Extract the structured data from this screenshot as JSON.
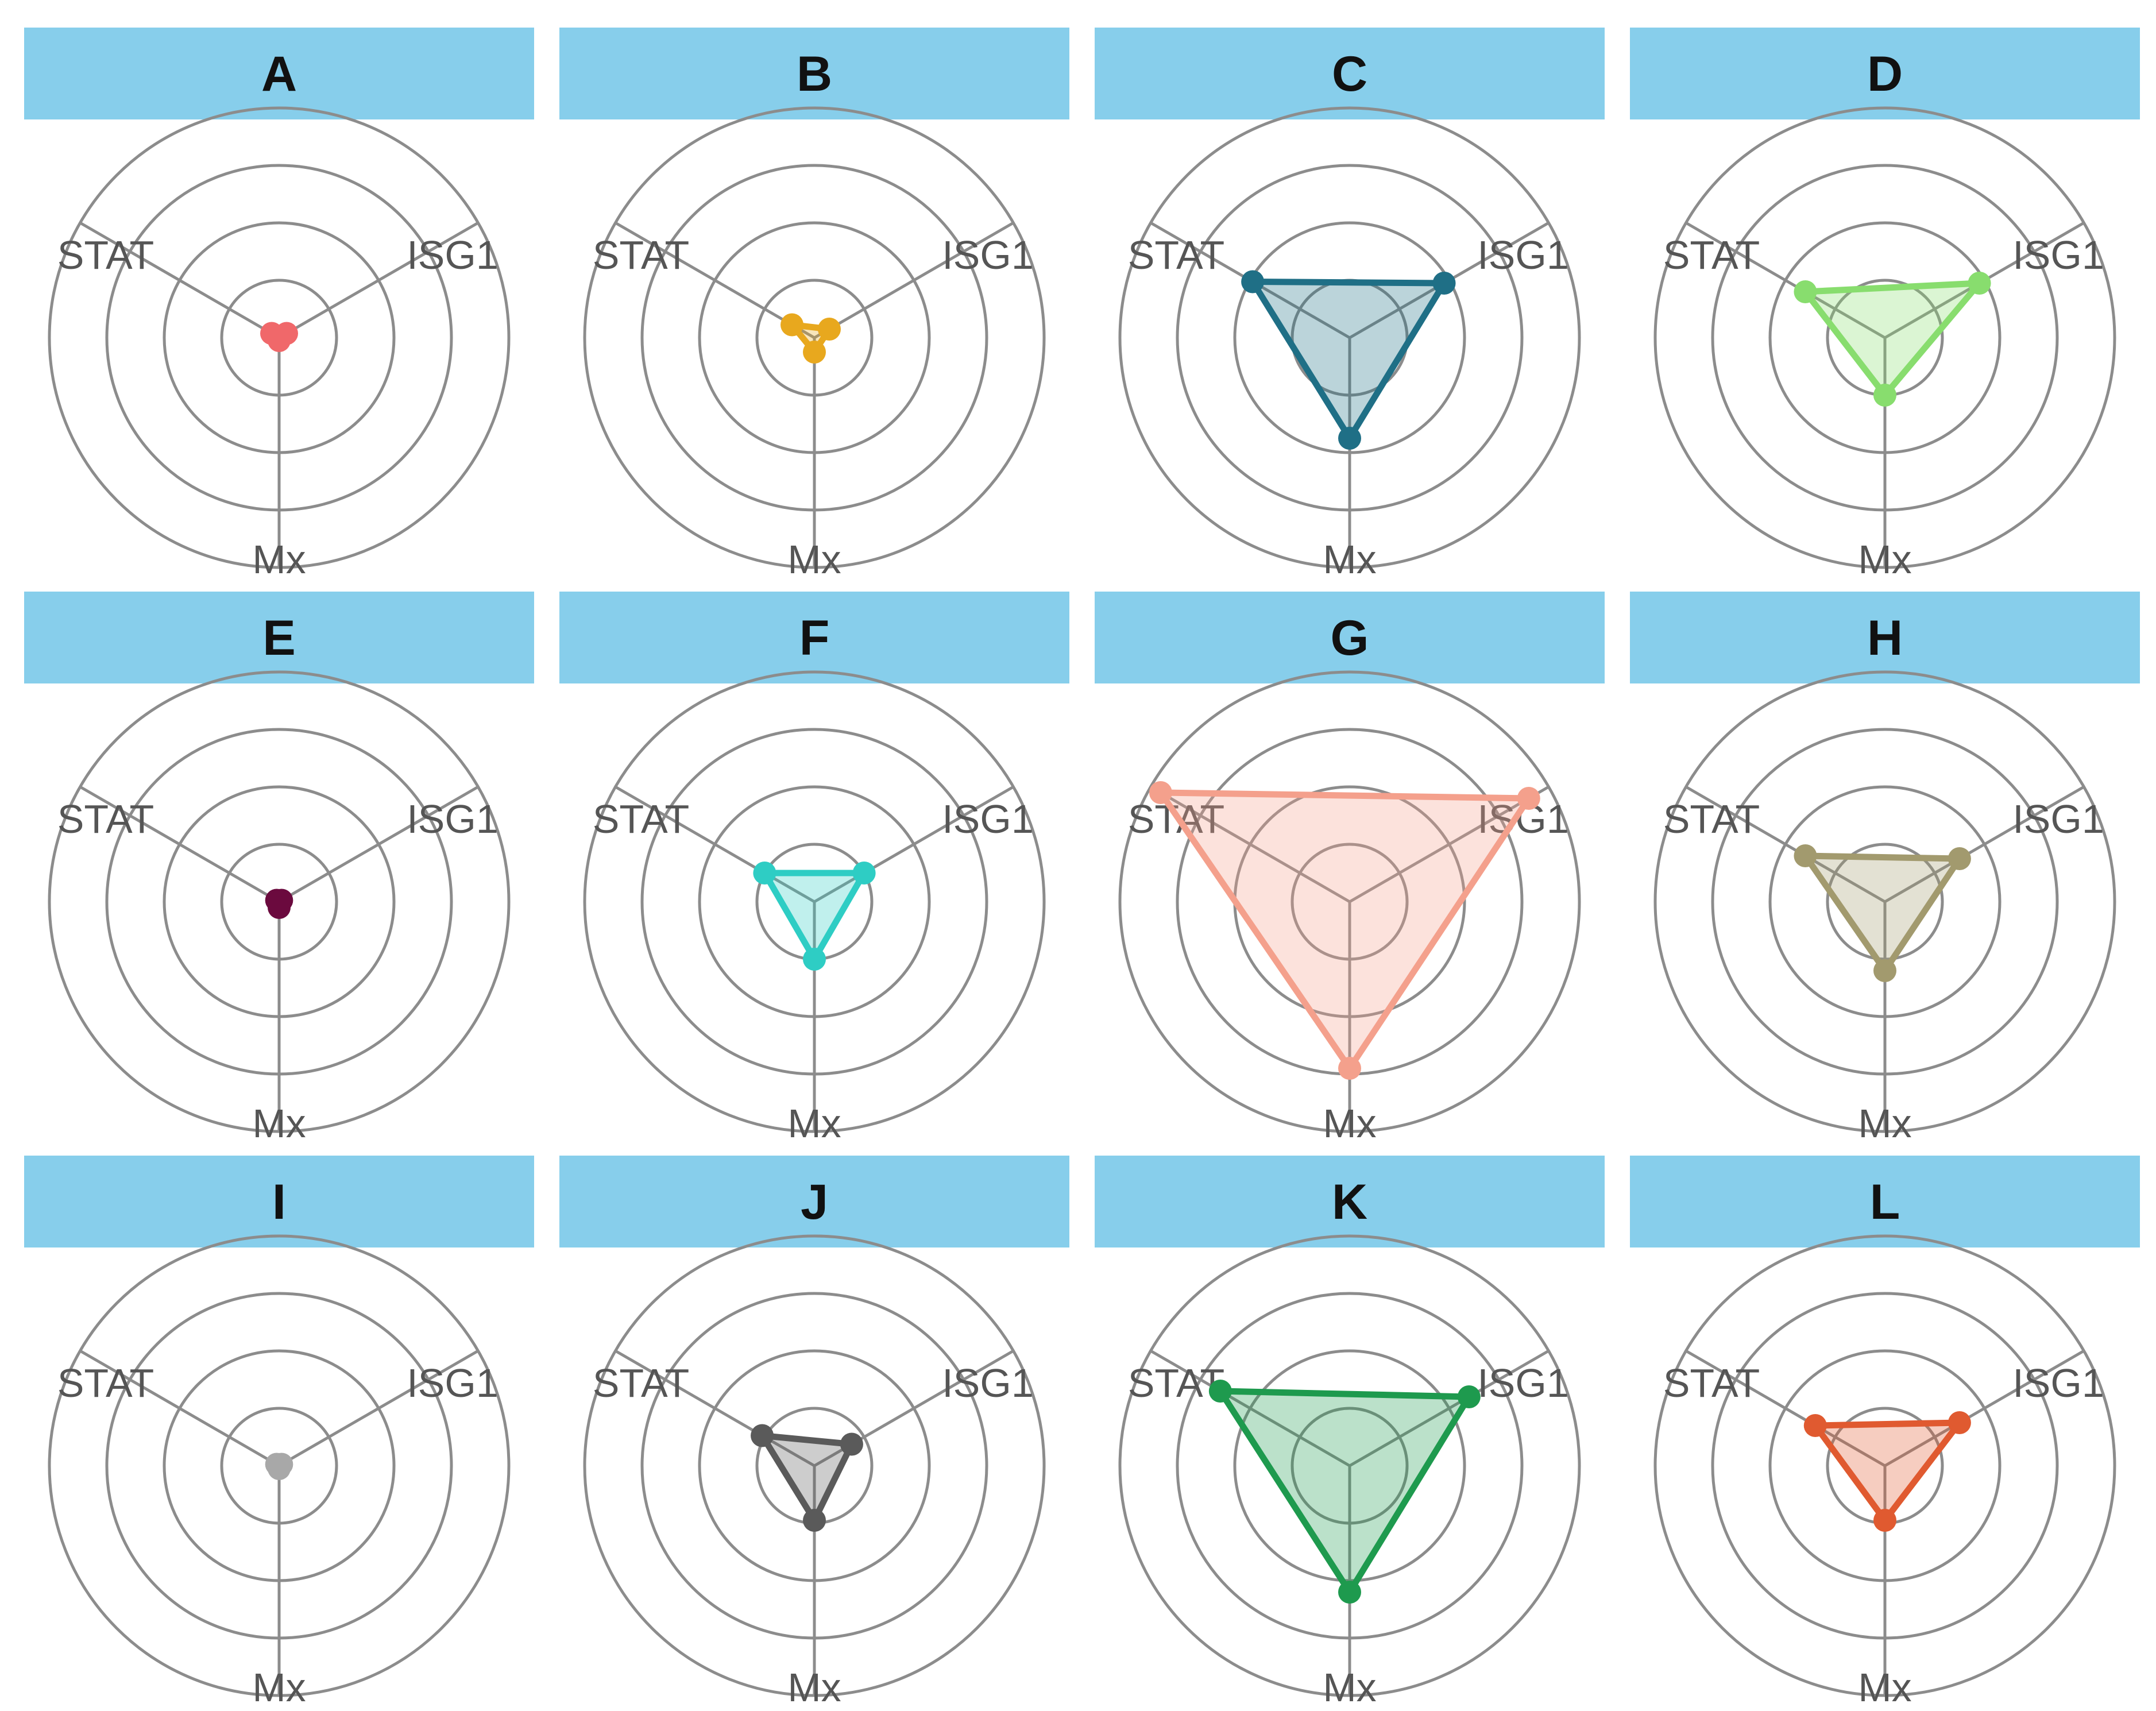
{
  "chart_data": {
    "type": "radar",
    "axes": [
      "STAT",
      "ISG1",
      "Mx"
    ],
    "rings": 4,
    "colors": {
      "header_fill": "#87CEEB",
      "ring_stroke": "#8c8c8c",
      "spoke_stroke": "#8c8c8c"
    },
    "panels": [
      {
        "label": "A",
        "color": "#F0686A",
        "values": {
          "STAT": 0.15,
          "ISG1": 0.15,
          "Mx": 0.05
        }
      },
      {
        "label": "B",
        "color": "#E8A81E",
        "values": {
          "STAT": 0.45,
          "ISG1": 0.3,
          "Mx": 0.25
        }
      },
      {
        "label": "C",
        "color": "#1F6F86",
        "values": {
          "STAT": 1.95,
          "ISG1": 1.9,
          "Mx": 1.75
        }
      },
      {
        "label": "D",
        "color": "#88DD6E",
        "values": {
          "STAT": 1.6,
          "ISG1": 1.9,
          "Mx": 1.0
        }
      },
      {
        "label": "E",
        "color": "#6B0A3E",
        "values": {
          "STAT": 0.05,
          "ISG1": 0.05,
          "Mx": 0.1
        }
      },
      {
        "label": "F",
        "color": "#2ECDC4",
        "values": {
          "STAT": 1.0,
          "ISG1": 1.0,
          "Mx": 1.0
        }
      },
      {
        "label": "G",
        "color": "#F4A08C",
        "values": {
          "STAT": 3.8,
          "ISG1": 3.6,
          "Mx": 2.9
        }
      },
      {
        "label": "H",
        "color": "#A29A6E",
        "values": {
          "STAT": 1.6,
          "ISG1": 1.5,
          "Mx": 1.2
        }
      },
      {
        "label": "I",
        "color": "#A8A8A8",
        "values": {
          "STAT": 0.05,
          "ISG1": 0.05,
          "Mx": 0.05
        }
      },
      {
        "label": "J",
        "color": "#5A5A5A",
        "values": {
          "STAT": 1.05,
          "ISG1": 0.75,
          "Mx": 0.95
        }
      },
      {
        "label": "K",
        "color": "#1E9A4E",
        "values": {
          "STAT": 2.6,
          "ISG1": 2.4,
          "Mx": 2.2
        }
      },
      {
        "label": "L",
        "color": "#E05A30",
        "values": {
          "STAT": 1.4,
          "ISG1": 1.5,
          "Mx": 0.95
        }
      }
    ]
  }
}
